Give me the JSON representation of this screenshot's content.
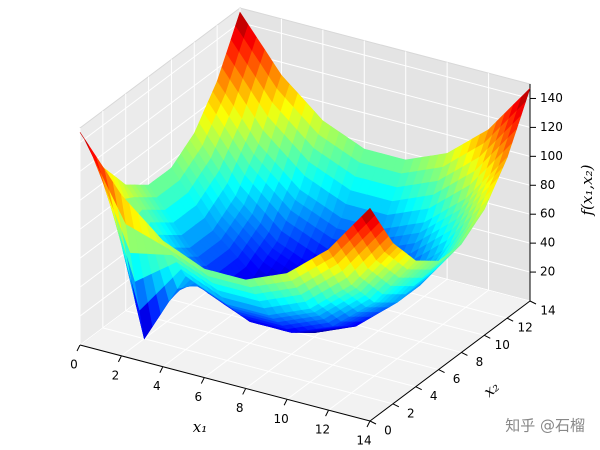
{
  "chart_data": {
    "type": "surface",
    "xlabel": "x₁",
    "ylabel": "x₂",
    "zlabel": "f(x₁,x₂)",
    "x": [
      0,
      2,
      4,
      6,
      8,
      10,
      12,
      14
    ],
    "y": [
      0,
      2,
      4,
      6,
      8,
      10,
      12,
      14
    ],
    "z": [
      [
        147,
        111,
        87,
        75,
        75,
        87,
        111,
        147
      ],
      [
        111,
        0,
        51,
        39,
        39,
        51,
        75,
        111
      ],
      [
        87,
        51,
        27,
        15,
        15,
        27,
        51,
        87
      ],
      [
        75,
        39,
        15,
        3,
        3,
        15,
        39,
        75
      ],
      [
        75,
        39,
        15,
        3,
        3,
        15,
        39,
        75
      ],
      [
        87,
        51,
        27,
        15,
        15,
        27,
        51,
        87
      ],
      [
        111,
        75,
        51,
        39,
        39,
        51,
        75,
        111
      ],
      [
        147,
        111,
        87,
        75,
        75,
        87,
        111,
        147
      ]
    ],
    "colormap": "jet",
    "xlim": [
      0,
      14
    ],
    "ylim": [
      0,
      14
    ],
    "zlim": [
      0,
      150
    ],
    "xticks": [
      0,
      2,
      4,
      6,
      8,
      10,
      12,
      14
    ],
    "yticks": [
      0,
      2,
      4,
      6,
      8,
      10,
      12,
      14
    ],
    "zticks": [
      20,
      40,
      60,
      80,
      100,
      120,
      140
    ],
    "grid": true,
    "watermark": "知乎 @石榴"
  }
}
